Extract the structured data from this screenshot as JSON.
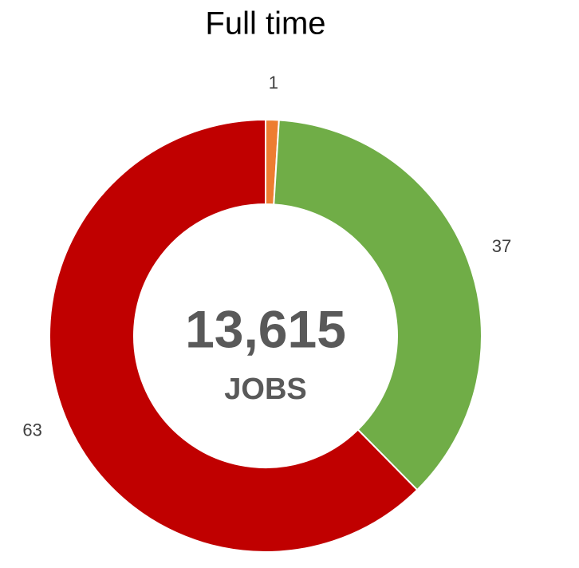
{
  "chart_data": {
    "type": "donut",
    "title": "Full time",
    "values": [
      1,
      37,
      63
    ],
    "colors": [
      "#ed7d31",
      "#70ad47",
      "#c00000"
    ],
    "center_value": "13,615",
    "center_label": "JOBS"
  }
}
